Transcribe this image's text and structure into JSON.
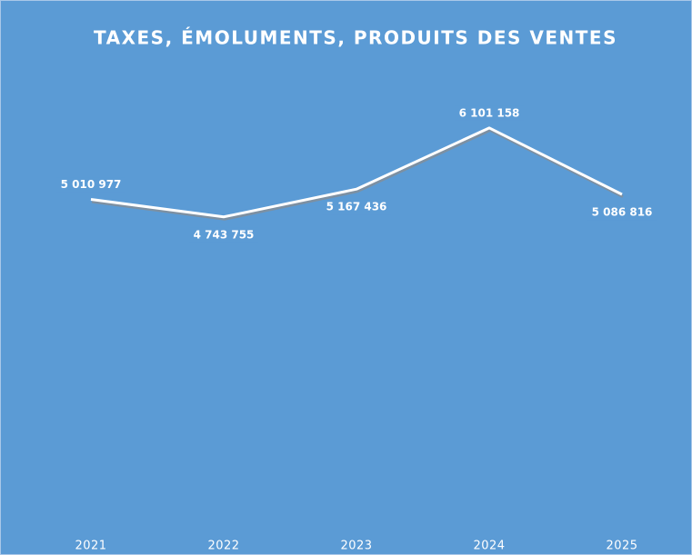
{
  "chart_data": {
    "type": "line",
    "title": "TAXES, ÉMOLUMENTS, PRODUITS DES VENTES",
    "categories": [
      "2021",
      "2022",
      "2023",
      "2024",
      "2025"
    ],
    "values": [
      5010977,
      4743755,
      5167436,
      6101158,
      5086816
    ],
    "value_labels": [
      "5 010 977",
      "4 743 755",
      "5 167 436",
      "6 101 158",
      "5 086 816"
    ],
    "color": "#ffffff",
    "ylim": [
      0,
      7000000
    ]
  }
}
